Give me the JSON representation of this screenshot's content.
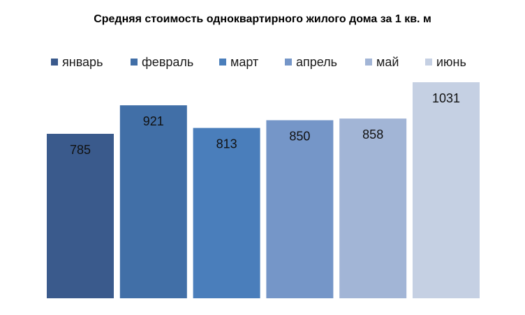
{
  "chart_data": {
    "type": "bar",
    "title": "Средняя стоимость одноквартирного  жилого дома за 1 кв. м",
    "xlabel": "",
    "ylabel": "",
    "grid": false,
    "legend_position": "top",
    "data_labels": true,
    "categories": [
      "январь",
      "февраль",
      "март",
      "апрель",
      "май",
      "июнь"
    ],
    "series": [
      {
        "name": "январь",
        "value": 785,
        "color": "#3A5A8C"
      },
      {
        "name": "февраль",
        "value": 921,
        "color": "#416FA7"
      },
      {
        "name": "март",
        "value": 813,
        "color": "#4A7EBB"
      },
      {
        "name": "апрель",
        "value": 850,
        "color": "#7596C8"
      },
      {
        "name": "май",
        "value": 858,
        "color": "#A2B5D6"
      },
      {
        "name": "июнь",
        "value": 1031,
        "color": "#C5D0E3"
      }
    ]
  }
}
